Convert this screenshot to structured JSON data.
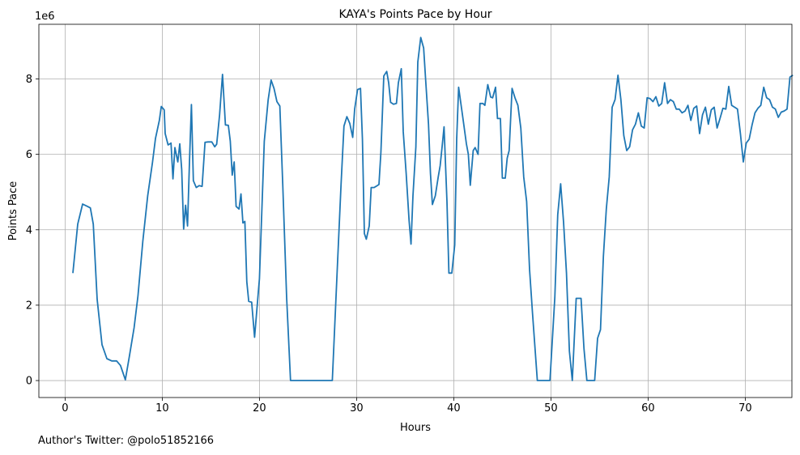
{
  "chart_data": {
    "type": "line",
    "title": "KAYA's Points Pace by Hour",
    "xlabel": "Hours",
    "ylabel": "Points Pace",
    "y_offset_label": "1e6",
    "xlim": [
      -2.7,
      74.8
    ],
    "ylim": [
      -0.45,
      9.45
    ],
    "x_ticks": [
      0,
      10,
      20,
      30,
      40,
      50,
      60,
      70
    ],
    "y_ticks": [
      0,
      2,
      4,
      6,
      8
    ],
    "grid": true,
    "line_color": "#1f77b4",
    "series": [
      {
        "points": [
          [
            0.8,
            2.85
          ],
          [
            1.3,
            4.15
          ],
          [
            1.8,
            4.68
          ],
          [
            2.3,
            4.62
          ],
          [
            2.6,
            4.58
          ],
          [
            2.9,
            4.15
          ],
          [
            3.3,
            2.15
          ],
          [
            3.8,
            0.95
          ],
          [
            4.3,
            0.58
          ],
          [
            4.8,
            0.52
          ],
          [
            5.3,
            0.52
          ],
          [
            5.7,
            0.4
          ],
          [
            6.2,
            0.02
          ],
          [
            6.6,
            0.62
          ],
          [
            7.1,
            1.4
          ],
          [
            7.5,
            2.25
          ],
          [
            8.0,
            3.7
          ],
          [
            8.5,
            4.9
          ],
          [
            9.0,
            5.8
          ],
          [
            9.3,
            6.42
          ],
          [
            9.7,
            6.9
          ],
          [
            9.9,
            7.27
          ],
          [
            10.2,
            7.18
          ],
          [
            10.3,
            6.55
          ],
          [
            10.6,
            6.25
          ],
          [
            10.9,
            6.3
          ],
          [
            11.1,
            5.35
          ],
          [
            11.3,
            6.18
          ],
          [
            11.6,
            5.8
          ],
          [
            11.8,
            6.28
          ],
          [
            12.0,
            5.6
          ],
          [
            12.2,
            4.02
          ],
          [
            12.4,
            4.65
          ],
          [
            12.6,
            4.1
          ],
          [
            12.8,
            5.8
          ],
          [
            13.0,
            7.32
          ],
          [
            13.2,
            5.3
          ],
          [
            13.5,
            5.12
          ],
          [
            13.8,
            5.17
          ],
          [
            14.1,
            5.15
          ],
          [
            14.4,
            6.32
          ],
          [
            14.7,
            6.33
          ],
          [
            15.1,
            6.33
          ],
          [
            15.4,
            6.2
          ],
          [
            15.6,
            6.27
          ],
          [
            15.9,
            7.05
          ],
          [
            16.2,
            8.12
          ],
          [
            16.5,
            6.78
          ],
          [
            16.8,
            6.77
          ],
          [
            17.0,
            6.35
          ],
          [
            17.2,
            5.45
          ],
          [
            17.4,
            5.8
          ],
          [
            17.6,
            4.62
          ],
          [
            17.9,
            4.55
          ],
          [
            18.1,
            4.95
          ],
          [
            18.3,
            4.18
          ],
          [
            18.5,
            4.22
          ],
          [
            18.7,
            2.62
          ],
          [
            18.9,
            2.1
          ],
          [
            19.2,
            2.08
          ],
          [
            19.5,
            1.15
          ],
          [
            20.0,
            2.7
          ],
          [
            20.5,
            6.35
          ],
          [
            20.9,
            7.45
          ],
          [
            21.2,
            7.97
          ],
          [
            21.5,
            7.75
          ],
          [
            21.8,
            7.4
          ],
          [
            22.1,
            7.28
          ],
          [
            22.4,
            5.2
          ],
          [
            22.8,
            2.2
          ],
          [
            23.2,
            0.0
          ],
          [
            27.5,
            0.0
          ],
          [
            28.0,
            2.9
          ],
          [
            28.4,
            5.2
          ],
          [
            28.7,
            6.75
          ],
          [
            29.0,
            7.0
          ],
          [
            29.3,
            6.82
          ],
          [
            29.6,
            6.45
          ],
          [
            29.8,
            7.2
          ],
          [
            30.1,
            7.72
          ],
          [
            30.4,
            7.75
          ],
          [
            30.6,
            6.4
          ],
          [
            30.8,
            3.9
          ],
          [
            31.0,
            3.75
          ],
          [
            31.3,
            4.1
          ],
          [
            31.5,
            5.12
          ],
          [
            31.8,
            5.12
          ],
          [
            32.0,
            5.15
          ],
          [
            32.3,
            5.2
          ],
          [
            32.5,
            6.05
          ],
          [
            32.8,
            8.08
          ],
          [
            33.1,
            8.2
          ],
          [
            33.3,
            7.9
          ],
          [
            33.5,
            7.38
          ],
          [
            33.8,
            7.33
          ],
          [
            34.1,
            7.35
          ],
          [
            34.3,
            7.9
          ],
          [
            34.6,
            8.27
          ],
          [
            34.8,
            6.6
          ],
          [
            35.1,
            5.5
          ],
          [
            35.4,
            4.25
          ],
          [
            35.6,
            3.62
          ],
          [
            35.8,
            4.9
          ],
          [
            36.1,
            6.2
          ],
          [
            36.3,
            8.45
          ],
          [
            36.6,
            9.1
          ],
          [
            36.9,
            8.82
          ],
          [
            37.1,
            8.0
          ],
          [
            37.4,
            6.8
          ],
          [
            37.6,
            5.5
          ],
          [
            37.8,
            4.67
          ],
          [
            38.1,
            4.9
          ],
          [
            38.4,
            5.4
          ],
          [
            38.6,
            5.7
          ],
          [
            38.8,
            6.2
          ],
          [
            39.0,
            6.73
          ],
          [
            39.3,
            4.75
          ],
          [
            39.5,
            2.85
          ],
          [
            39.8,
            2.85
          ],
          [
            40.1,
            3.6
          ],
          [
            40.3,
            6.4
          ],
          [
            40.5,
            7.78
          ],
          [
            40.8,
            7.22
          ],
          [
            41.0,
            6.85
          ],
          [
            41.3,
            6.28
          ],
          [
            41.5,
            6.0
          ],
          [
            41.7,
            5.18
          ],
          [
            42.0,
            6.1
          ],
          [
            42.2,
            6.18
          ],
          [
            42.5,
            6.0
          ],
          [
            42.7,
            7.35
          ],
          [
            43.0,
            7.35
          ],
          [
            43.2,
            7.3
          ],
          [
            43.5,
            7.85
          ],
          [
            43.8,
            7.52
          ],
          [
            44.0,
            7.5
          ],
          [
            44.3,
            7.78
          ],
          [
            44.5,
            6.95
          ],
          [
            44.8,
            6.95
          ],
          [
            45.0,
            5.37
          ],
          [
            45.3,
            5.37
          ],
          [
            45.5,
            5.9
          ],
          [
            45.7,
            6.1
          ],
          [
            46.0,
            7.75
          ],
          [
            46.3,
            7.5
          ],
          [
            46.6,
            7.3
          ],
          [
            46.9,
            6.7
          ],
          [
            47.2,
            5.4
          ],
          [
            47.5,
            4.75
          ],
          [
            47.8,
            2.95
          ],
          [
            48.1,
            1.8
          ],
          [
            48.6,
            0.0
          ],
          [
            49.9,
            0.0
          ],
          [
            50.4,
            2.2
          ],
          [
            50.7,
            4.4
          ],
          [
            51.0,
            5.22
          ],
          [
            51.3,
            4.2
          ],
          [
            51.6,
            2.85
          ],
          [
            51.9,
            0.78
          ],
          [
            52.2,
            0.0
          ],
          [
            52.6,
            2.18
          ],
          [
            53.1,
            2.18
          ],
          [
            53.4,
            0.85
          ],
          [
            53.7,
            0.0
          ],
          [
            54.5,
            0.0
          ],
          [
            54.8,
            1.12
          ],
          [
            55.1,
            1.35
          ],
          [
            55.4,
            3.3
          ],
          [
            55.7,
            4.55
          ],
          [
            56.0,
            5.4
          ],
          [
            56.3,
            7.25
          ],
          [
            56.6,
            7.45
          ],
          [
            56.9,
            8.1
          ],
          [
            57.2,
            7.45
          ],
          [
            57.5,
            6.5
          ],
          [
            57.8,
            6.1
          ],
          [
            58.1,
            6.2
          ],
          [
            58.4,
            6.65
          ],
          [
            58.7,
            6.8
          ],
          [
            59.0,
            7.1
          ],
          [
            59.3,
            6.75
          ],
          [
            59.6,
            6.7
          ],
          [
            59.9,
            7.5
          ],
          [
            60.2,
            7.48
          ],
          [
            60.5,
            7.4
          ],
          [
            60.8,
            7.53
          ],
          [
            61.1,
            7.28
          ],
          [
            61.4,
            7.35
          ],
          [
            61.7,
            7.9
          ],
          [
            62.0,
            7.35
          ],
          [
            62.3,
            7.45
          ],
          [
            62.6,
            7.4
          ],
          [
            62.9,
            7.2
          ],
          [
            63.2,
            7.2
          ],
          [
            63.5,
            7.1
          ],
          [
            63.8,
            7.15
          ],
          [
            64.1,
            7.3
          ],
          [
            64.4,
            6.9
          ],
          [
            64.7,
            7.22
          ],
          [
            65.0,
            7.28
          ],
          [
            65.3,
            6.55
          ],
          [
            65.6,
            7.05
          ],
          [
            65.9,
            7.25
          ],
          [
            66.2,
            6.8
          ],
          [
            66.5,
            7.18
          ],
          [
            66.8,
            7.25
          ],
          [
            67.1,
            6.7
          ],
          [
            67.4,
            6.95
          ],
          [
            67.7,
            7.22
          ],
          [
            68.0,
            7.2
          ],
          [
            68.3,
            7.8
          ],
          [
            68.6,
            7.3
          ],
          [
            68.9,
            7.25
          ],
          [
            69.2,
            7.2
          ],
          [
            69.5,
            6.55
          ],
          [
            69.8,
            5.8
          ],
          [
            70.1,
            6.3
          ],
          [
            70.4,
            6.4
          ],
          [
            70.7,
            6.78
          ],
          [
            71.0,
            7.1
          ],
          [
            71.3,
            7.22
          ],
          [
            71.6,
            7.3
          ],
          [
            71.9,
            7.78
          ],
          [
            72.2,
            7.5
          ],
          [
            72.5,
            7.45
          ],
          [
            72.8,
            7.25
          ],
          [
            73.1,
            7.2
          ],
          [
            73.4,
            6.98
          ],
          [
            73.7,
            7.12
          ],
          [
            74.0,
            7.15
          ],
          [
            74.3,
            7.2
          ],
          [
            74.6,
            8.05
          ],
          [
            74.9,
            8.1
          ]
        ]
      }
    ]
  },
  "footer": {
    "credit": "Author's Twitter: @polo51852166"
  }
}
